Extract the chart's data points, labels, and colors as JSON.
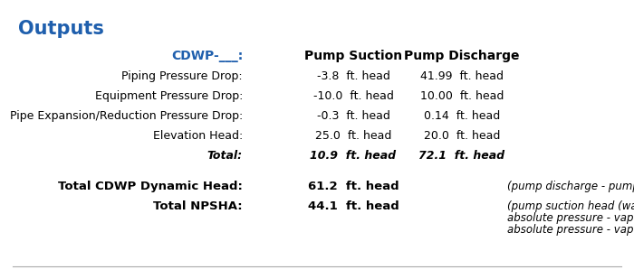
{
  "title": "Outputs",
  "title_color": "#1F5FAD",
  "title_fontsize": 15,
  "header_label": "CDWP-___:",
  "header_color": "#1F5FAD",
  "col_headers": [
    "Pump Suction",
    "Pump Discharge"
  ],
  "col_header_fontsize": 10,
  "rows": [
    {
      "label": "Piping Pressure Drop:",
      "suction": "-3.8  ft. head",
      "discharge": "41.99  ft. head",
      "italic": false
    },
    {
      "label": "Equipment Pressure Drop:",
      "suction": "-10.0  ft. head",
      "discharge": "10.00  ft. head",
      "italic": false
    },
    {
      "label": "Pipe Expansion/Reduction Pressure Drop:",
      "suction": "-0.3  ft. head",
      "discharge": "0.14  ft. head",
      "italic": false
    },
    {
      "label": "Elevation Head:",
      "suction": "25.0  ft. head",
      "discharge": "20.0  ft. head",
      "italic": false
    },
    {
      "label": "Total:",
      "suction": "10.9  ft. head",
      "discharge": "72.1  ft. head",
      "italic": true
    }
  ],
  "summary_rows": [
    {
      "label": "Total CDWP Dynamic Head:",
      "value": "61.2  ft. head",
      "note_line1": "(pump discharge - pump suction head)",
      "note_line2": ""
    },
    {
      "label": "Total NPSHA:",
      "value": "44.1  ft. head",
      "note_line1": "(pump suction head (water) +",
      "note_line2": "absolute pressure - vapor pressure)"
    }
  ],
  "background_color": "#ffffff",
  "text_color": "#000000",
  "data_fontsize": 9,
  "summary_fontsize": 9.5,
  "note_fontsize": 8.5
}
